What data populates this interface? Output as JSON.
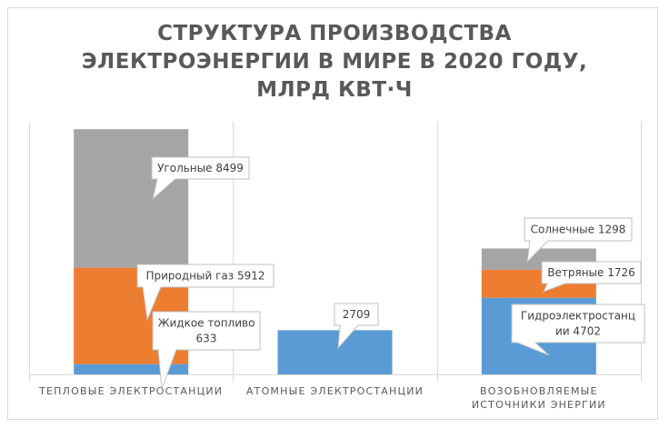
{
  "chart_data": {
    "type": "bar",
    "stacked": true,
    "title_lines": [
      "СТРУКТУРА ПРОИЗВОДСТВА",
      "ЭЛЕКТРОЭНЕРГИИ В МИРЕ В 2020 ГОДУ,",
      "МЛРД КВТ·Ч"
    ],
    "categories": [
      {
        "lines": [
          "ТЕПЛОВЫЕ ЭЛЕКТРОСТАНЦИИ"
        ]
      },
      {
        "lines": [
          "АТОМНЫЕ ЭЛЕКТРОСТАНЦИИ"
        ]
      },
      {
        "lines": [
          "ВОЗОБНОВЛЯЕМЫЕ",
          "ИСТОЧНИКИ ЭНЕРГИИ"
        ]
      }
    ],
    "ylim": [
      0,
      15500
    ],
    "grid": false,
    "segments": [
      {
        "category": 0,
        "value": 633,
        "color": "#5b9bd5",
        "label_lines": [
          "Жидкое топливо",
          "633"
        ]
      },
      {
        "category": 0,
        "value": 5912,
        "color": "#ed7d31",
        "label_lines": [
          "Природный газ 5912"
        ]
      },
      {
        "category": 0,
        "value": 8499,
        "color": "#a5a5a5",
        "label_lines": [
          "Угольные 8499"
        ]
      },
      {
        "category": 1,
        "value": 2709,
        "color": "#5b9bd5",
        "label_lines": [
          "2709"
        ]
      },
      {
        "category": 2,
        "value": 4702,
        "color": "#5b9bd5",
        "label_lines": [
          "Гидроэлектростанц",
          "ии 4702"
        ]
      },
      {
        "category": 2,
        "value": 1726,
        "color": "#ed7d31",
        "label_lines": [
          "Ветряные 1726"
        ]
      },
      {
        "category": 2,
        "value": 1298,
        "color": "#a5a5a5",
        "label_lines": [
          "Солнечные 1298"
        ]
      }
    ]
  }
}
